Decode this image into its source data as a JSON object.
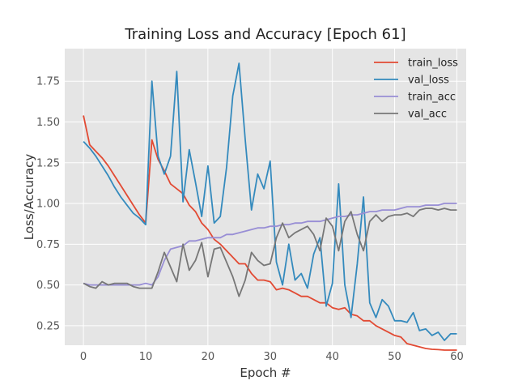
{
  "chart_data": {
    "type": "line",
    "title": "Training Loss and Accuracy [Epoch 61]",
    "xlabel": "Epoch #",
    "ylabel": "Loss/Accuracy",
    "xlim": [
      -3,
      61.5
    ],
    "ylim": [
      0.13,
      1.95
    ],
    "xticks": [
      0,
      10,
      20,
      30,
      40,
      50,
      60
    ],
    "yticks": [
      0.25,
      0.5,
      0.75,
      1.0,
      1.25,
      1.5,
      1.75
    ],
    "ytick_labels": [
      "0.25",
      "0.50",
      "0.75",
      "1.00",
      "1.25",
      "1.50",
      "1.75"
    ],
    "legend_position": "top-right",
    "grid": true,
    "x": [
      0,
      1,
      2,
      3,
      4,
      5,
      6,
      7,
      8,
      9,
      10,
      11,
      12,
      13,
      14,
      15,
      16,
      17,
      18,
      19,
      20,
      21,
      22,
      23,
      24,
      25,
      26,
      27,
      28,
      29,
      30,
      31,
      32,
      33,
      34,
      35,
      36,
      37,
      38,
      39,
      40,
      41,
      42,
      43,
      44,
      45,
      46,
      47,
      48,
      49,
      50,
      51,
      52,
      53,
      54,
      55,
      56,
      57,
      58,
      59,
      60
    ],
    "series": [
      {
        "name": "train_loss",
        "color": "#E24A33",
        "values": [
          1.54,
          1.36,
          1.32,
          1.28,
          1.23,
          1.17,
          1.11,
          1.05,
          0.99,
          0.93,
          0.88,
          1.39,
          1.27,
          1.2,
          1.12,
          1.09,
          1.06,
          0.99,
          0.95,
          0.88,
          0.84,
          0.78,
          0.75,
          0.71,
          0.67,
          0.63,
          0.63,
          0.57,
          0.53,
          0.53,
          0.52,
          0.47,
          0.48,
          0.47,
          0.45,
          0.43,
          0.43,
          0.41,
          0.39,
          0.39,
          0.36,
          0.35,
          0.36,
          0.32,
          0.31,
          0.28,
          0.28,
          0.25,
          0.23,
          0.21,
          0.19,
          0.18,
          0.14,
          0.13,
          0.12,
          0.11,
          0.105,
          0.103,
          0.1,
          0.1,
          0.1
        ]
      },
      {
        "name": "val_loss",
        "color": "#348ABD",
        "values": [
          1.38,
          1.34,
          1.29,
          1.23,
          1.17,
          1.1,
          1.04,
          0.99,
          0.94,
          0.91,
          0.87,
          1.75,
          1.29,
          1.18,
          1.29,
          1.81,
          1.01,
          1.33,
          1.13,
          0.92,
          1.23,
          0.88,
          0.92,
          1.22,
          1.66,
          1.86,
          1.39,
          0.96,
          1.18,
          1.09,
          1.26,
          0.64,
          0.5,
          0.75,
          0.53,
          0.57,
          0.48,
          0.69,
          0.79,
          0.37,
          0.51,
          1.12,
          0.5,
          0.3,
          0.63,
          1.04,
          0.39,
          0.3,
          0.41,
          0.37,
          0.28,
          0.28,
          0.27,
          0.33,
          0.22,
          0.23,
          0.19,
          0.21,
          0.16,
          0.2,
          0.2
        ]
      },
      {
        "name": "train_acc",
        "color": "#988ED5",
        "values": [
          0.51,
          0.5,
          0.5,
          0.5,
          0.5,
          0.5,
          0.5,
          0.5,
          0.5,
          0.5,
          0.51,
          0.5,
          0.55,
          0.65,
          0.72,
          0.73,
          0.74,
          0.77,
          0.77,
          0.78,
          0.79,
          0.79,
          0.79,
          0.81,
          0.81,
          0.82,
          0.83,
          0.84,
          0.85,
          0.85,
          0.86,
          0.86,
          0.87,
          0.87,
          0.88,
          0.88,
          0.89,
          0.89,
          0.89,
          0.9,
          0.91,
          0.92,
          0.92,
          0.93,
          0.93,
          0.94,
          0.95,
          0.95,
          0.96,
          0.96,
          0.96,
          0.97,
          0.98,
          0.98,
          0.98,
          0.99,
          0.99,
          0.99,
          1.0,
          1.0,
          1.0
        ]
      },
      {
        "name": "val_acc",
        "color": "#777777",
        "values": [
          0.51,
          0.49,
          0.48,
          0.52,
          0.5,
          0.51,
          0.51,
          0.51,
          0.49,
          0.48,
          0.48,
          0.48,
          0.58,
          0.7,
          0.61,
          0.52,
          0.75,
          0.59,
          0.65,
          0.76,
          0.55,
          0.72,
          0.73,
          0.64,
          0.55,
          0.43,
          0.53,
          0.7,
          0.65,
          0.62,
          0.63,
          0.79,
          0.88,
          0.79,
          0.82,
          0.84,
          0.86,
          0.81,
          0.71,
          0.91,
          0.86,
          0.71,
          0.89,
          0.95,
          0.81,
          0.71,
          0.89,
          0.93,
          0.89,
          0.92,
          0.93,
          0.93,
          0.94,
          0.92,
          0.96,
          0.97,
          0.97,
          0.96,
          0.97,
          0.96,
          0.96
        ]
      }
    ]
  }
}
